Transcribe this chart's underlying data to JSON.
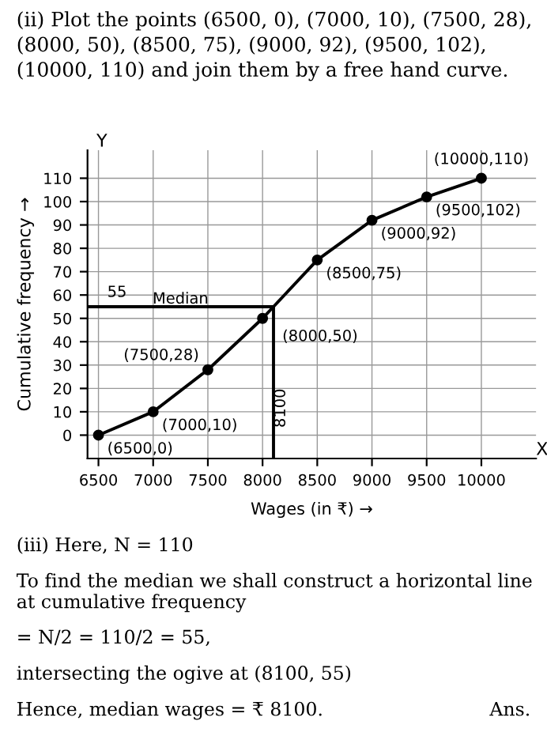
{
  "chart_data": {
    "type": "line",
    "xlabel": "Wages (in ₹) →",
    "ylabel": "Cumulative frequency →",
    "x": [
      6500,
      7000,
      7500,
      8000,
      8500,
      9000,
      9500,
      10000
    ],
    "series": [
      {
        "color": "#000000",
        "values": [
          0,
          10,
          28,
          50,
          75,
          92,
          102,
          110
        ],
        "marker": "circle"
      }
    ],
    "ref_lines": [
      {
        "axis": "y",
        "value": 55,
        "label": "Median",
        "color": "#000000"
      },
      {
        "axis": "x",
        "value": 8100,
        "label": "8100",
        "color": "#000000"
      }
    ],
    "xlim": [
      6400,
      10500
    ],
    "ylim": [
      -10,
      122
    ],
    "xticks": [
      6500,
      7000,
      7500,
      8000,
      8500,
      9000,
      9500,
      10000
    ],
    "yticks": [
      0,
      10,
      20,
      30,
      40,
      50,
      60,
      70,
      80,
      90,
      100,
      110
    ],
    "grid": true,
    "line_style": "solid",
    "annotations": [
      "(ii) Plot the points (6500, 0), (7000, 10), (7500, 28), (8000, 50), (8500, 75), (9000, 92), (9500, 102), (10000, 110) and join them by a free hand curve.",
      "(iii) Here, N = 110",
      "To find the median we shall construct a horizontal line at cumulative frequency",
      "= N/2 = 110/2 = 55,",
      "intersecting the ogive at (8100, 55)",
      "Hence, median wages = ₹ 8100.",
      "Ans.",
      {
        "text": "(6500,0)",
        "x": 6500,
        "y": 0
      },
      {
        "text": "(7000,10)",
        "x": 7000,
        "y": 10
      },
      {
        "text": "(7500,28)",
        "x": 7500,
        "y": 28
      },
      {
        "text": "(8000,50)",
        "x": 8000,
        "y": 50
      },
      {
        "text": "(8500,75)",
        "x": 8500,
        "y": 75
      },
      {
        "text": "(9000,92)",
        "x": 9000,
        "y": 92
      },
      {
        "text": "(9500,102)",
        "x": 9500,
        "y": 102
      },
      {
        "text": "(10000,110)",
        "x": 10000,
        "y": 110
      },
      {
        "text": "55",
        "x": 6500,
        "y": 55
      },
      "Y",
      "X"
    ]
  }
}
